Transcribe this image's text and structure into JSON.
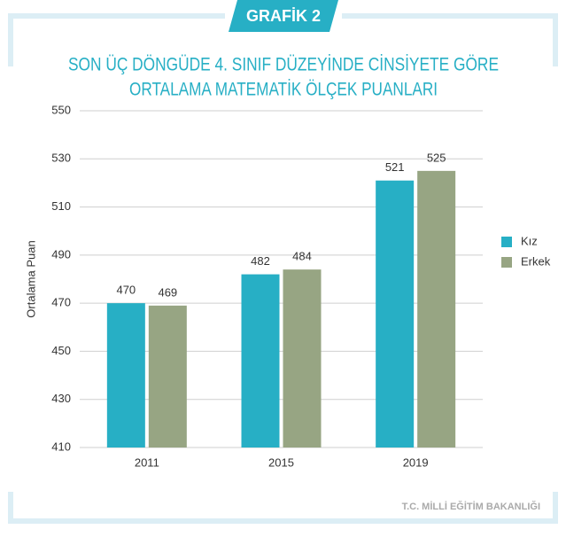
{
  "badge": "GRAFİK 2",
  "source": "T.C. MİLLİ EĞİTİM BAKANLIĞI",
  "chart_data": {
    "type": "bar",
    "title": [
      "SON ÜÇ DÖNGÜDE 4. SINIF DÜZEYİNDE CİNSİYETE GÖRE",
      "ORTALAMA MATEMATİK ÖLÇEK PUANLARI"
    ],
    "y_label": "Ortalama Puan",
    "categories": [
      "2011",
      "2015",
      "2019"
    ],
    "series": [
      {
        "name": "Kız",
        "color": "#27afc5",
        "values": [
          470,
          482,
          521
        ]
      },
      {
        "name": "Erkek",
        "color": "#97a583",
        "values": [
          469,
          484,
          525
        ]
      }
    ],
    "ylim": [
      410,
      550
    ],
    "yticks": [
      410,
      430,
      450,
      470,
      490,
      510,
      530,
      550
    ],
    "grid": true,
    "legend": "right"
  }
}
